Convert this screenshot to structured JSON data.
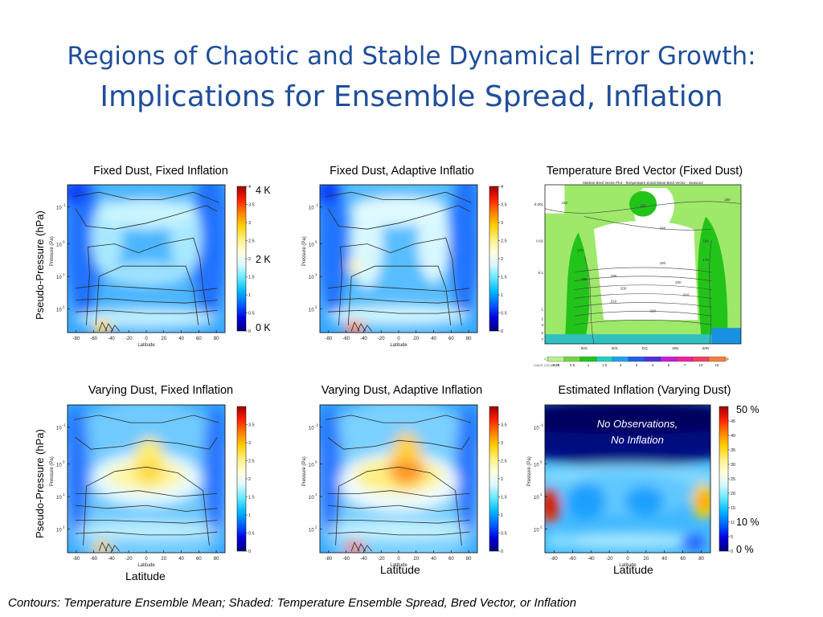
{
  "slide": {
    "title_line1": "Regions of Chaotic and Stable Dynamical Error Growth:",
    "title_line2": "Implications for Ensemble Spread, Inflation",
    "footer": "Contours: Temperature Ensemble Mean; Shaded: Temperature Ensemble Spread, Bred Vector, or Inflation"
  },
  "panels": {
    "p1": {
      "title": "Fixed Dust, Fixed Inflation"
    },
    "p2": {
      "title": "Fixed Dust, Adaptive Inflatio"
    },
    "p3": {
      "title": "Temperature Bred Vector (Fixed Dust)",
      "inner_title": "Martian Bred Vector Plot - Temperature Zonal Mean Bred Vector - Season2",
      "corner_label": "GrADS: COLA/IGES"
    },
    "p4": {
      "title": "Varying Dust, Fixed Inflation"
    },
    "p5": {
      "title": "Varying Dust, Adaptive Inflation"
    },
    "p6": {
      "title": "Estimated Inflation (Varying Dust)",
      "annotation_line1": "No Observations,",
      "annotation_line2": "No Inflation"
    }
  },
  "axis_labels": {
    "big_ylabel": "Pseudo-Pressure (hPa)",
    "small_ylabel": "Pressure (Pa)",
    "big_xlabel": "Latitude",
    "small_xlabel": "Latitude"
  },
  "colorbar_labels": {
    "top": "4 K",
    "mid": "2 K",
    "bottom": "0 K",
    "infl_top": "50 %",
    "infl_mid": "10 %",
    "infl_bottom": "0 %"
  },
  "chart_data": [
    {
      "id": "p1",
      "type": "heatmap",
      "title": "Fixed Dust, Fixed Inflation",
      "x_ticks": [
        -80,
        -60,
        -40,
        -20,
        0,
        20,
        40,
        60,
        80
      ],
      "y_ticks": [
        "10^-1",
        "10^0",
        "10^1",
        "10^2"
      ],
      "xlim": [
        -90,
        90
      ],
      "colorbar_ticks": [
        0,
        0.5,
        1,
        1.5,
        2,
        2.5,
        3,
        3.5,
        4
      ],
      "colorbar_labels": [
        "4 K",
        "2 K",
        "0 K"
      ]
    },
    {
      "id": "p2",
      "type": "heatmap",
      "title": "Fixed Dust, Adaptive Inflatio",
      "x_ticks": [
        -80,
        -60,
        -40,
        -20,
        0,
        20,
        40,
        60,
        80
      ],
      "y_ticks": [
        "10^-1",
        "10^0",
        "10^1",
        "10^2"
      ],
      "xlim": [
        -90,
        90
      ],
      "colorbar_ticks": [
        0,
        0.5,
        1,
        1.5,
        2,
        2.5,
        3,
        3.5,
        4
      ]
    },
    {
      "id": "p3",
      "type": "heatmap",
      "title": "Temperature Bred Vector (Fixed Dust)",
      "x_ticks": [
        "60S",
        "30S",
        "EQ",
        "30N",
        "60N"
      ],
      "y_ticks": [
        "0.001",
        "0.01",
        "0.1",
        "1",
        "2",
        "3",
        "5",
        "7"
      ],
      "colorbar_levels": [
        0.25,
        0.5,
        1,
        1.5,
        2,
        3,
        4,
        5,
        7,
        10,
        15
      ],
      "contour_labels": [
        180,
        150,
        180,
        160,
        180,
        170,
        180,
        170,
        190,
        180,
        200,
        200,
        210,
        210,
        220
      ]
    },
    {
      "id": "p4",
      "type": "heatmap",
      "title": "Varying Dust, Fixed Inflation",
      "x_ticks": [
        -80,
        -60,
        -40,
        -20,
        0,
        20,
        40,
        60,
        80
      ],
      "y_ticks": [
        "10^-1",
        "10^0",
        "10^1",
        "10^2"
      ],
      "xlim": [
        -90,
        90
      ],
      "colorbar_ticks": [
        0,
        0.5,
        1,
        1.5,
        2,
        2.5,
        3,
        3.5
      ]
    },
    {
      "id": "p5",
      "type": "heatmap",
      "title": "Varying Dust, Adaptive Inflation",
      "x_ticks": [
        -80,
        -60,
        -40,
        -20,
        0,
        20,
        40,
        60,
        80
      ],
      "y_ticks": [
        "10^-1",
        "10^0",
        "10^1",
        "10^2"
      ],
      "xlim": [
        -90,
        90
      ],
      "colorbar_ticks": [
        0,
        0.5,
        1,
        1.5,
        2,
        2.5,
        3,
        3.5
      ]
    },
    {
      "id": "p6",
      "type": "heatmap",
      "title": "Estimated Inflation (Varying Dust)",
      "x_ticks": [
        -80,
        -60,
        -40,
        -20,
        0,
        20,
        40,
        60,
        80
      ],
      "y_ticks": [
        "10^-1",
        "10^0",
        "10^1",
        "10^2"
      ],
      "xlim": [
        -90,
        90
      ],
      "colorbar_ticks": [
        0,
        5,
        10,
        15,
        20,
        25,
        30,
        35,
        40,
        45
      ],
      "colorbar_labels": [
        "50 %",
        "10 %",
        "0 %"
      ]
    }
  ]
}
